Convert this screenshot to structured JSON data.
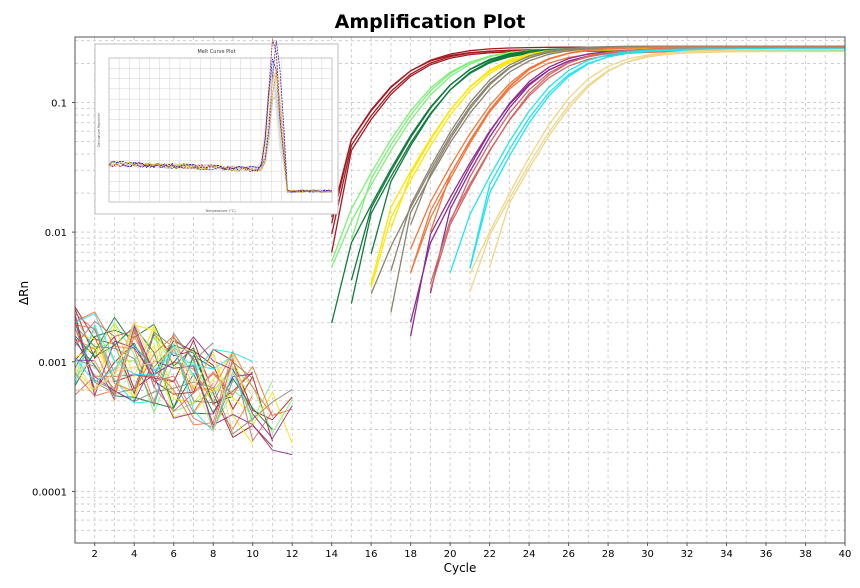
{
  "chart_data": {
    "type": "line",
    "title": "Amplification Plot",
    "xlabel": "Cycle",
    "ylabel": "ΔRn",
    "xlim": [
      1,
      40
    ],
    "ylim": [
      4e-05,
      0.32
    ],
    "yscale": "log",
    "grid": true,
    "legend": "none",
    "x_ticks": [
      "2",
      "4",
      "6",
      "8",
      "10",
      "12",
      "14",
      "16",
      "18",
      "20",
      "22",
      "24",
      "26",
      "28",
      "30",
      "32",
      "34",
      "36",
      "38",
      "40"
    ],
    "y_ticks": [
      {
        "value": 0.0001,
        "label": "0.0001"
      },
      {
        "value": 0.001,
        "label": "0.001"
      },
      {
        "value": 0.01,
        "label": "0.01"
      },
      {
        "value": 0.1,
        "label": "0.1"
      }
    ],
    "plateau": 0.26,
    "series_groups": [
      {
        "color": "#a31b22",
        "ct_values": [
          14.9,
          15.0,
          15.1,
          15.2
        ]
      },
      {
        "color": "#7ef07a",
        "ct_values": [
          16.9,
          17.1,
          17.3
        ]
      },
      {
        "color": "#0f7b3c",
        "ct_values": [
          17.8,
          17.9,
          18.0,
          18.1
        ]
      },
      {
        "color": "#ffe600",
        "ct_values": [
          18.9,
          19.0,
          19.1
        ]
      },
      {
        "color": "#8a8370",
        "ct_values": [
          19.8,
          19.9,
          20.0,
          20.1
        ]
      },
      {
        "color": "#f0763e",
        "ct_values": [
          20.8,
          20.9,
          21.0,
          21.1
        ]
      },
      {
        "color": "#8e2d8f",
        "ct_values": [
          21.6,
          21.7,
          21.8
        ]
      },
      {
        "color": "#cf6a6a",
        "ct_values": [
          22.0,
          22.2,
          22.3
        ]
      },
      {
        "color": "#22e4ee",
        "ct_values": [
          23.0,
          23.2,
          23.4
        ]
      },
      {
        "color": "#eed68a",
        "ct_values": [
          24.4,
          24.6,
          24.8
        ]
      }
    ],
    "inset": {
      "title": "Melt Curve Plot",
      "xlabel": "Temperature (°C)",
      "ylabel": "Derivative Reporter"
    }
  }
}
